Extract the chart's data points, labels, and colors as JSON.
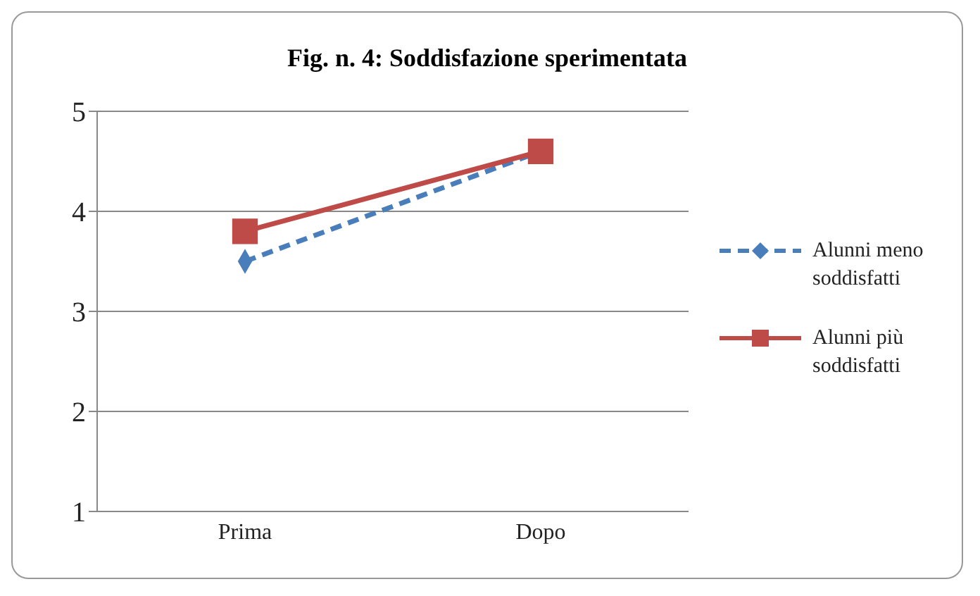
{
  "chart_data": {
    "type": "line",
    "title": "Fig. n. 4: Soddisfazione sperimentata",
    "categories": [
      "Prima",
      "Dopo"
    ],
    "series": [
      {
        "name": "Alunni meno soddisfatti",
        "color": "#4a7ebb",
        "values": [
          3.5,
          4.6
        ],
        "marker": "diamond",
        "line_style": "dashed"
      },
      {
        "name": "Alunni più soddisfatti",
        "color": "#be4b48",
        "values": [
          3.8,
          4.6
        ],
        "marker": "square",
        "line_style": "solid"
      }
    ],
    "ylim": [
      1,
      5
    ],
    "yticks": [
      1,
      2,
      3,
      4,
      5
    ],
    "grid": "y",
    "legend": "right"
  }
}
